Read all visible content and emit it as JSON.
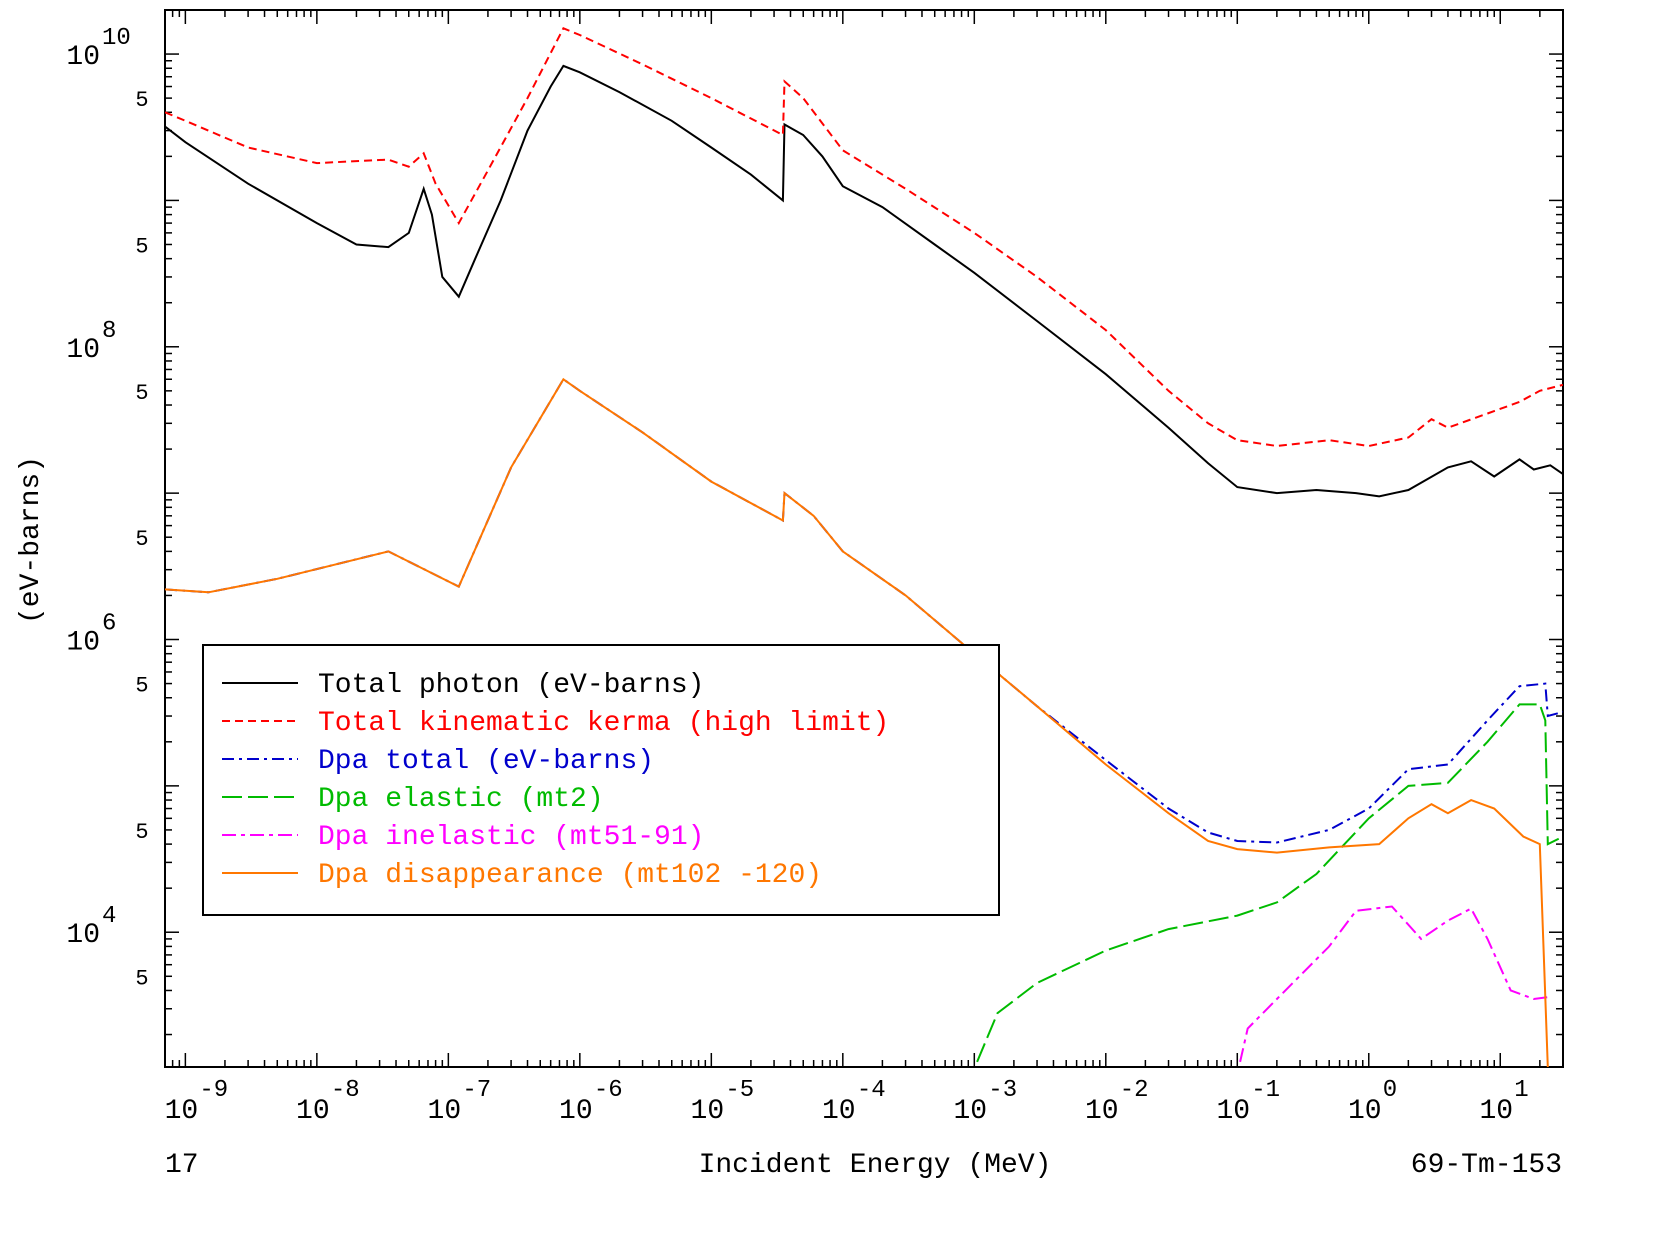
{
  "chart_data": {
    "type": "line",
    "title": "",
    "xlabel": "Incident Energy (MeV)",
    "ylabel": "(eV-barns)",
    "xscale": "log",
    "yscale": "log",
    "xlim": [
      7e-10,
      30
    ],
    "ylim": [
      1200,
      20000000000
    ],
    "grid": false,
    "legend_position": "lower-left",
    "footer_left": "17",
    "footer_right": "69-Tm-153",
    "x_tick_labels": [
      {
        "value": 1e-09,
        "label": "10-9"
      },
      {
        "value": 1e-08,
        "label": "10-8"
      },
      {
        "value": 1e-07,
        "label": "10-7"
      },
      {
        "value": 1e-06,
        "label": "10-6"
      },
      {
        "value": 1e-05,
        "label": "10-5"
      },
      {
        "value": 0.0001,
        "label": "10-4"
      },
      {
        "value": 0.001,
        "label": "10-3"
      },
      {
        "value": 0.01,
        "label": "10-2"
      },
      {
        "value": 0.1,
        "label": "10-1"
      },
      {
        "value": 1,
        "label": "100"
      },
      {
        "value": 10,
        "label": "101"
      }
    ],
    "y_tick_labels": [
      {
        "value": 10000.0,
        "base": "10",
        "exp": "4"
      },
      {
        "value": 1000000.0,
        "base": "10",
        "exp": "6"
      },
      {
        "value": 100000000.0,
        "base": "10",
        "exp": "8"
      },
      {
        "value": 10000000000.0,
        "base": "10",
        "exp": "10"
      }
    ],
    "y_minor_labels": [
      {
        "value": 5000,
        "label": "5"
      },
      {
        "value": 50000,
        "label": "5"
      },
      {
        "value": 500000,
        "label": "5"
      },
      {
        "value": 5000000,
        "label": "5"
      },
      {
        "value": 50000000,
        "label": "5"
      },
      {
        "value": 500000000,
        "label": "5"
      },
      {
        "value": 5000000000,
        "label": "5"
      }
    ],
    "series": [
      {
        "name": "Total photon (eV-barns)",
        "color": "#000000",
        "dash": "none",
        "points": [
          [
            7e-10,
            3200000000.0
          ],
          [
            1e-09,
            2500000000.0
          ],
          [
            3e-09,
            1300000000.0
          ],
          [
            1e-08,
            700000000.0
          ],
          [
            2e-08,
            500000000.0
          ],
          [
            3.5e-08,
            480000000.0
          ],
          [
            5e-08,
            600000000.0
          ],
          [
            6.5e-08,
            1200000000.0
          ],
          [
            7.5e-08,
            800000000.0
          ],
          [
            9e-08,
            300000000.0
          ],
          [
            1.2e-07,
            220000000.0
          ],
          [
            1.6e-07,
            400000000.0
          ],
          [
            2.5e-07,
            1000000000.0
          ],
          [
            4e-07,
            3000000000.0
          ],
          [
            6e-07,
            6000000000.0
          ],
          [
            7.5e-07,
            8300000000.0
          ],
          [
            1e-06,
            7500000000.0
          ],
          [
            2e-06,
            5500000000.0
          ],
          [
            5e-06,
            3500000000.0
          ],
          [
            1e-05,
            2300000000.0
          ],
          [
            2e-05,
            1500000000.0
          ],
          [
            3.5e-05,
            1000000000.0
          ],
          [
            3.6e-05,
            3300000000.0
          ],
          [
            5e-05,
            2800000000.0
          ],
          [
            7e-05,
            2000000000.0
          ],
          [
            0.0001,
            1250000000.0
          ],
          [
            0.0002,
            900000000.0
          ],
          [
            0.0005,
            500000000.0
          ],
          [
            0.001,
            320000000.0
          ],
          [
            0.003,
            150000000.0
          ],
          [
            0.01,
            65000000.0
          ],
          [
            0.03,
            28000000.0
          ],
          [
            0.06,
            16000000.0
          ],
          [
            0.1,
            11000000.0
          ],
          [
            0.2,
            10000000.0
          ],
          [
            0.4,
            10500000.0
          ],
          [
            0.8,
            10000000.0
          ],
          [
            1.2,
            9500000.0
          ],
          [
            2,
            10500000.0
          ],
          [
            4,
            15000000.0
          ],
          [
            6,
            16500000.0
          ],
          [
            9,
            13000000.0
          ],
          [
            14,
            17000000.0
          ],
          [
            18,
            14500000.0
          ],
          [
            24,
            15500000.0
          ],
          [
            30,
            13500000.0
          ]
        ]
      },
      {
        "name": "Total kinematic kerma (high limit)",
        "color": "#ff0000",
        "dash": "8,5",
        "points": [
          [
            7e-10,
            4000000000.0
          ],
          [
            1e-09,
            3500000000.0
          ],
          [
            3e-09,
            2300000000.0
          ],
          [
            1e-08,
            1800000000.0
          ],
          [
            3.5e-08,
            1900000000.0
          ],
          [
            5e-08,
            1700000000.0
          ],
          [
            6.5e-08,
            2100000000.0
          ],
          [
            8e-08,
            1300000000.0
          ],
          [
            1.2e-07,
            700000000.0
          ],
          [
            2e-07,
            1600000000.0
          ],
          [
            4e-07,
            5000000000.0
          ],
          [
            7.5e-07,
            15000000000.0
          ],
          [
            1e-06,
            13500000000.0
          ],
          [
            3e-06,
            8500000000.0
          ],
          [
            1e-05,
            5000000000.0
          ],
          [
            3.5e-05,
            2800000000.0
          ],
          [
            3.6e-05,
            6500000000.0
          ],
          [
            5e-05,
            5000000000.0
          ],
          [
            0.0001,
            2200000000.0
          ],
          [
            0.0003,
            1200000000.0
          ],
          [
            0.001,
            600000000.0
          ],
          [
            0.003,
            300000000.0
          ],
          [
            0.01,
            130000000.0
          ],
          [
            0.03,
            50000000.0
          ],
          [
            0.06,
            30000000.0
          ],
          [
            0.1,
            23000000.0
          ],
          [
            0.2,
            21000000.0
          ],
          [
            0.5,
            23000000.0
          ],
          [
            1,
            21000000.0
          ],
          [
            2,
            24000000.0
          ],
          [
            3,
            32000000.0
          ],
          [
            4,
            28000000.0
          ],
          [
            8,
            35000000.0
          ],
          [
            14,
            42000000.0
          ],
          [
            20,
            50000000.0
          ],
          [
            30,
            55000000.0
          ]
        ]
      },
      {
        "name": "Dpa total (eV-barns)",
        "color": "#0000cc",
        "dash": "12,5,3,5",
        "points": [
          [
            7e-10,
            2200000.0
          ],
          [
            1.5e-09,
            2100000.0
          ],
          [
            5e-09,
            2600000.0
          ],
          [
            3.5e-08,
            4000000.0
          ],
          [
            1.2e-07,
            2300000.0
          ],
          [
            3e-07,
            15000000.0
          ],
          [
            7.5e-07,
            60000000.0
          ],
          [
            1e-06,
            50000000.0
          ],
          [
            3e-06,
            26000000.0
          ],
          [
            1e-05,
            12000000.0
          ],
          [
            3.5e-05,
            6500000.0
          ],
          [
            3.6e-05,
            10000000.0
          ],
          [
            6e-05,
            7000000.0
          ],
          [
            0.0001,
            4000000.0
          ],
          [
            0.0003,
            2000000.0
          ],
          [
            0.001,
            800000.0
          ],
          [
            0.003,
            350000.0
          ],
          [
            0.01,
            150000.0
          ],
          [
            0.03,
            70000.0
          ],
          [
            0.06,
            48000.0
          ],
          [
            0.1,
            42000.0
          ],
          [
            0.2,
            41000.0
          ],
          [
            0.5,
            50000.0
          ],
          [
            1,
            70000.0
          ],
          [
            2,
            130000.0
          ],
          [
            4,
            140000.0
          ],
          [
            8,
            280000.0
          ],
          [
            14,
            480000.0
          ],
          [
            22,
            500000.0
          ],
          [
            23,
            300000.0
          ],
          [
            30,
            320000.0
          ]
        ]
      },
      {
        "name": "Dpa elastic (mt2)",
        "color": "#00bb00",
        "dash": "20,6",
        "points": [
          [
            0.00105,
            1300
          ],
          [
            0.0015,
            2800
          ],
          [
            0.003,
            4500
          ],
          [
            0.01,
            7500
          ],
          [
            0.03,
            10500
          ],
          [
            0.1,
            13000
          ],
          [
            0.2,
            16000
          ],
          [
            0.4,
            25000
          ],
          [
            1,
            60000
          ],
          [
            2,
            100000.0
          ],
          [
            4,
            105000.0
          ],
          [
            8,
            200000.0
          ],
          [
            14,
            360000.0
          ],
          [
            20,
            360000.0
          ],
          [
            22,
            280000.0
          ],
          [
            23,
            40000.0
          ],
          [
            30,
            45000.0
          ]
        ]
      },
      {
        "name": "Dpa inelastic (mt51-91)",
        "color": "#ff00ff",
        "dash": "14,5,4,5",
        "points": [
          [
            0.105,
            1300
          ],
          [
            0.12,
            2200
          ],
          [
            0.2,
            3500
          ],
          [
            0.5,
            8000
          ],
          [
            0.8,
            14000
          ],
          [
            1.5,
            15000
          ],
          [
            2.5,
            9000
          ],
          [
            4,
            12000
          ],
          [
            6,
            14500
          ],
          [
            8,
            9000
          ],
          [
            12,
            4000
          ],
          [
            18,
            3500
          ],
          [
            23,
            3600
          ]
        ]
      },
      {
        "name": "Dpa disappearance (mt102 -120)",
        "color": "#ff7700",
        "dash": "none",
        "points": [
          [
            7e-10,
            2200000.0
          ],
          [
            1.5e-09,
            2100000.0
          ],
          [
            5e-09,
            2600000.0
          ],
          [
            3.5e-08,
            4000000.0
          ],
          [
            1.2e-07,
            2300000.0
          ],
          [
            3e-07,
            15000000.0
          ],
          [
            7.5e-07,
            60000000.0
          ],
          [
            1e-06,
            50000000.0
          ],
          [
            3e-06,
            26000000.0
          ],
          [
            1e-05,
            12000000.0
          ],
          [
            3.5e-05,
            6500000.0
          ],
          [
            3.6e-05,
            10000000.0
          ],
          [
            6e-05,
            7000000.0
          ],
          [
            0.0001,
            4000000.0
          ],
          [
            0.0003,
            2000000.0
          ],
          [
            0.001,
            800000.0
          ],
          [
            0.003,
            350000.0
          ],
          [
            0.01,
            140000.0
          ],
          [
            0.03,
            65000.0
          ],
          [
            0.06,
            42000.0
          ],
          [
            0.1,
            37000.0
          ],
          [
            0.2,
            35000.0
          ],
          [
            0.5,
            38000.0
          ],
          [
            1.2,
            40000.0
          ],
          [
            2,
            60000.0
          ],
          [
            3,
            75000.0
          ],
          [
            4,
            65000.0
          ],
          [
            6,
            80000.0
          ],
          [
            9,
            70000.0
          ],
          [
            15,
            45000.0
          ],
          [
            20,
            40000.0
          ],
          [
            23,
            1200
          ]
        ]
      }
    ]
  }
}
